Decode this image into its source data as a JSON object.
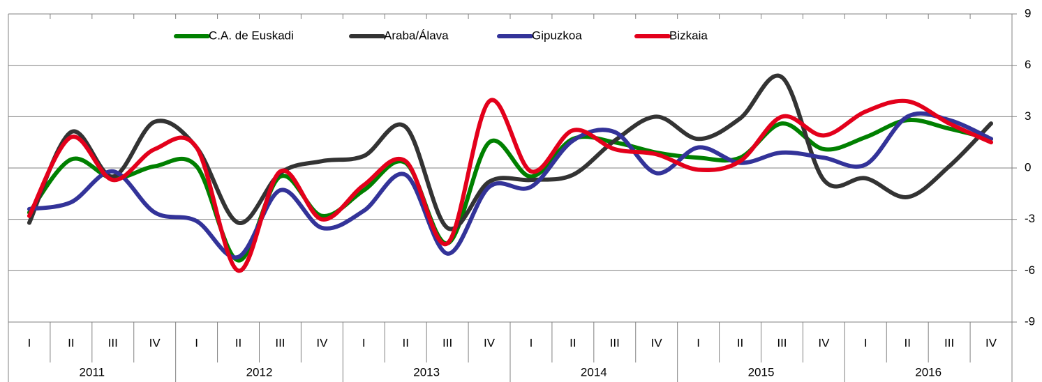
{
  "chart_data": {
    "type": "line",
    "categories": [
      "I",
      "II",
      "III",
      "IV",
      "I",
      "II",
      "III",
      "IV",
      "I",
      "II",
      "III",
      "IV",
      "I",
      "II",
      "III",
      "IV",
      "I",
      "II",
      "III",
      "IV",
      "I",
      "II",
      "III",
      "IV"
    ],
    "years": [
      "2011",
      "2012",
      "2013",
      "2014",
      "2015",
      "2016"
    ],
    "series": [
      {
        "name": "C.A. de Euskadi",
        "color": "#008000",
        "values": [
          -2.6,
          0.5,
          -0.6,
          0.1,
          0.1,
          -5.4,
          -0.5,
          -2.8,
          -1.3,
          0.3,
          -4.4,
          1.5,
          -0.5,
          1.7,
          1.5,
          0.9,
          0.6,
          0.6,
          2.6,
          1.1,
          1.8,
          2.8,
          2.3,
          1.7
        ]
      },
      {
        "name": "Araba/Álava",
        "color": "#333333",
        "values": [
          -3.2,
          2.1,
          -0.5,
          2.7,
          1.2,
          -3.2,
          -0.3,
          0.4,
          0.7,
          2.4,
          -3.5,
          -0.8,
          -0.7,
          -0.4,
          1.6,
          3.0,
          1.7,
          2.9,
          5.3,
          -0.7,
          -0.6,
          -1.7,
          0.1,
          2.6
        ]
      },
      {
        "name": "Gipuzkoa",
        "color": "#333399",
        "values": [
          -2.4,
          -2.0,
          -0.2,
          -2.6,
          -3.1,
          -5.2,
          -1.3,
          -3.5,
          -2.5,
          -0.4,
          -5.0,
          -1.1,
          -1.1,
          1.6,
          2.1,
          -0.3,
          1.2,
          0.3,
          0.9,
          0.6,
          0.2,
          3.0,
          2.8,
          1.7
        ]
      },
      {
        "name": "Bizkaia",
        "color": "#e3001b",
        "values": [
          -2.8,
          1.8,
          -0.7,
          1.1,
          1.2,
          -6.0,
          -0.2,
          -3.0,
          -1.0,
          0.4,
          -4.4,
          3.9,
          -0.2,
          2.2,
          1.1,
          0.8,
          -0.1,
          0.4,
          3.0,
          1.9,
          3.3,
          3.9,
          2.6,
          1.5
        ]
      }
    ],
    "ylim": [
      -9,
      9
    ],
    "yticks": [
      -9,
      -6,
      -3,
      0,
      3,
      6,
      9
    ],
    "grid": true,
    "legend": "top"
  }
}
